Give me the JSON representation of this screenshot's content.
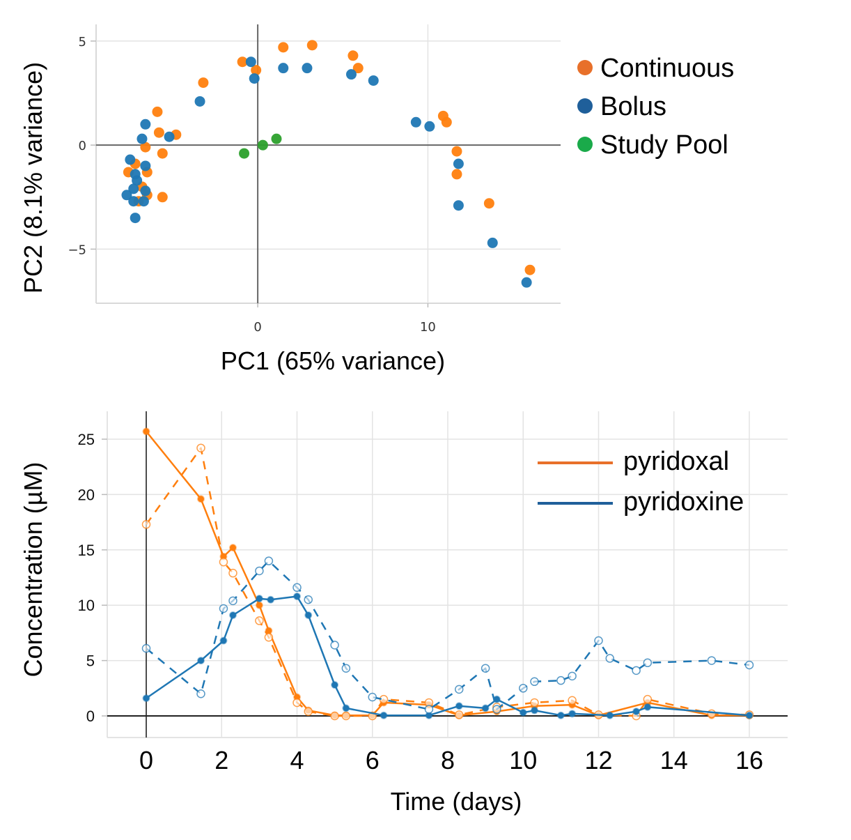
{
  "chart_data": [
    {
      "type": "scatter",
      "title": "",
      "xlabel": "PC1 (65% variance)",
      "ylabel": "PC2 (8.1% variance)",
      "xlim": [
        -9.5,
        17.8
      ],
      "ylim": [
        -7.6,
        5.8
      ],
      "xticks": [
        0,
        10
      ],
      "xtick_labels": [
        "0",
        "10"
      ],
      "yticks": [
        5,
        0,
        -5
      ],
      "ytick_labels": [
        "5",
        "0",
        "−5"
      ],
      "grid": true,
      "legend_position": "right",
      "series": [
        {
          "name": "Continuous",
          "color": "#ff7f0e",
          "legend_color": "#e8702a",
          "points": [
            [
              -0.9,
              4.0
            ],
            [
              -0.1,
              3.6
            ],
            [
              1.5,
              4.7
            ],
            [
              3.2,
              4.8
            ],
            [
              5.6,
              4.3
            ],
            [
              5.9,
              3.7
            ],
            [
              -3.2,
              3.0
            ],
            [
              -5.9,
              1.6
            ],
            [
              -5.8,
              0.6
            ],
            [
              -4.8,
              0.5
            ],
            [
              -6.6,
              -0.1
            ],
            [
              -5.6,
              -0.4
            ],
            [
              -7.2,
              -0.9
            ],
            [
              -7.6,
              -1.3
            ],
            [
              -6.5,
              -1.3
            ],
            [
              -6.8,
              -2.0
            ],
            [
              -6.5,
              -2.4
            ],
            [
              -7.0,
              -2.7
            ],
            [
              -5.6,
              -2.5
            ],
            [
              10.9,
              1.4
            ],
            [
              11.1,
              1.1
            ],
            [
              11.7,
              -0.3
            ],
            [
              11.7,
              -1.4
            ],
            [
              13.6,
              -2.8
            ],
            [
              16.0,
              -6.0
            ]
          ]
        },
        {
          "name": "Bolus",
          "color": "#1f77b4",
          "legend_color": "#1f5f9a",
          "points": [
            [
              -0.4,
              4.0
            ],
            [
              -0.2,
              3.2
            ],
            [
              1.5,
              3.7
            ],
            [
              2.9,
              3.7
            ],
            [
              5.5,
              3.4
            ],
            [
              6.8,
              3.1
            ],
            [
              -3.4,
              2.1
            ],
            [
              -6.6,
              1.0
            ],
            [
              -6.8,
              0.3
            ],
            [
              -5.2,
              0.4
            ],
            [
              -7.5,
              -0.7
            ],
            [
              -6.6,
              -1.0
            ],
            [
              -7.2,
              -1.4
            ],
            [
              -7.1,
              -1.7
            ],
            [
              -6.6,
              -2.2
            ],
            [
              -7.3,
              -2.1
            ],
            [
              -7.7,
              -2.4
            ],
            [
              -7.3,
              -2.7
            ],
            [
              -6.7,
              -2.7
            ],
            [
              -7.2,
              -3.5
            ],
            [
              9.3,
              1.1
            ],
            [
              10.1,
              0.9
            ],
            [
              11.8,
              -0.9
            ],
            [
              11.8,
              -2.9
            ],
            [
              13.8,
              -4.7
            ],
            [
              15.8,
              -6.6
            ]
          ]
        },
        {
          "name": "Study Pool",
          "color": "#2ca02c",
          "legend_color": "#1aaa4a",
          "points": [
            [
              -0.8,
              -0.4
            ],
            [
              0.3,
              0.0
            ],
            [
              1.1,
              0.3
            ]
          ]
        }
      ]
    },
    {
      "type": "line",
      "title": "",
      "xlabel": "Time (days)",
      "ylabel": "Concentration (µM)",
      "xlim": [
        -1.05,
        17.0
      ],
      "ylim": [
        -2.0,
        27.0
      ],
      "xticks": [
        0,
        2,
        4,
        6,
        8,
        10,
        12,
        14,
        16
      ],
      "xtick_labels": [
        "0",
        "2",
        "4",
        "6",
        "8",
        "10",
        "12",
        "14",
        "16"
      ],
      "yticks": [
        0,
        5,
        10,
        15,
        20,
        25
      ],
      "ytick_labels": [
        "0",
        "5",
        "10",
        "15",
        "20",
        "25"
      ],
      "grid": true,
      "legend_position": "top-right",
      "legend": [
        {
          "name": "pyridoxal",
          "color": "#e8702a"
        },
        {
          "name": "pyridoxine",
          "color": "#1f5f9a"
        }
      ],
      "series": [
        {
          "name": "pyridoxal (solid, filled markers)",
          "compound": "pyridoxal",
          "style": "solid",
          "marker": "filled",
          "color": "#ff7f0e",
          "x": [
            0,
            1.45,
            2.05,
            2.3,
            3.0,
            3.25,
            4.0,
            4.3,
            5.0,
            5.3,
            6.0,
            6.3,
            7.5,
            8.3,
            9.3,
            10.3,
            11.3,
            12.0,
            13.3,
            15.0,
            16.0
          ],
          "y": [
            25.7,
            19.6,
            14.4,
            15.2,
            10.0,
            7.7,
            1.7,
            0.5,
            0.05,
            0.05,
            0.05,
            1.2,
            1.0,
            0.05,
            0.4,
            0.9,
            1.0,
            0.05,
            1.2,
            0.05,
            0.05
          ]
        },
        {
          "name": "pyridoxal (dashed, open markers)",
          "compound": "pyridoxal",
          "style": "dashed",
          "marker": "open",
          "color": "#ff7f0e",
          "x": [
            0,
            1.45,
            2.05,
            2.3,
            3.0,
            3.25,
            4.0,
            4.3,
            5.0,
            5.3,
            6.0,
            6.3,
            7.5,
            8.3,
            9.3,
            10.3,
            11.3,
            12.0,
            13.0,
            13.3,
            15.0,
            16.0
          ],
          "y": [
            17.3,
            24.2,
            13.9,
            12.9,
            8.6,
            7.1,
            1.2,
            0.4,
            0.0,
            0.0,
            0.0,
            1.5,
            1.2,
            0.1,
            0.8,
            1.2,
            1.4,
            0.1,
            0.0,
            1.5,
            0.2,
            0.1
          ]
        },
        {
          "name": "pyridoxine (solid, filled markers)",
          "compound": "pyridoxine",
          "style": "solid",
          "marker": "filled",
          "color": "#1f77b4",
          "x": [
            0,
            1.45,
            2.05,
            2.3,
            3.0,
            3.3,
            4.0,
            4.3,
            5.0,
            5.3,
            6.3,
            7.5,
            8.3,
            9.0,
            9.3,
            10.0,
            10.3,
            11.0,
            11.3,
            12.3,
            13.0,
            13.3,
            16.0
          ],
          "y": [
            1.6,
            5.0,
            6.8,
            9.1,
            10.6,
            10.5,
            10.8,
            9.1,
            2.8,
            0.7,
            0.05,
            0.05,
            0.9,
            0.7,
            1.5,
            0.3,
            0.5,
            0.05,
            0.2,
            0.05,
            0.4,
            0.8,
            0.05
          ]
        },
        {
          "name": "pyridoxine (dashed, open markers)",
          "compound": "pyridoxine",
          "style": "dashed",
          "marker": "open",
          "color": "#1f77b4",
          "x": [
            0,
            1.45,
            2.05,
            2.3,
            3.0,
            3.25,
            4.0,
            4.3,
            5.0,
            5.3,
            6.0,
            7.5,
            8.3,
            9.0,
            9.3,
            10.0,
            10.3,
            11.0,
            11.3,
            12.0,
            12.3,
            13.0,
            13.3,
            15.0,
            16.0
          ],
          "y": [
            6.1,
            2.0,
            9.7,
            10.4,
            13.1,
            14.0,
            11.6,
            10.5,
            6.4,
            4.3,
            1.7,
            0.6,
            2.4,
            4.3,
            0.6,
            2.5,
            3.1,
            3.2,
            3.6,
            6.8,
            5.2,
            4.1,
            4.8,
            5.0,
            4.6
          ]
        }
      ]
    }
  ]
}
